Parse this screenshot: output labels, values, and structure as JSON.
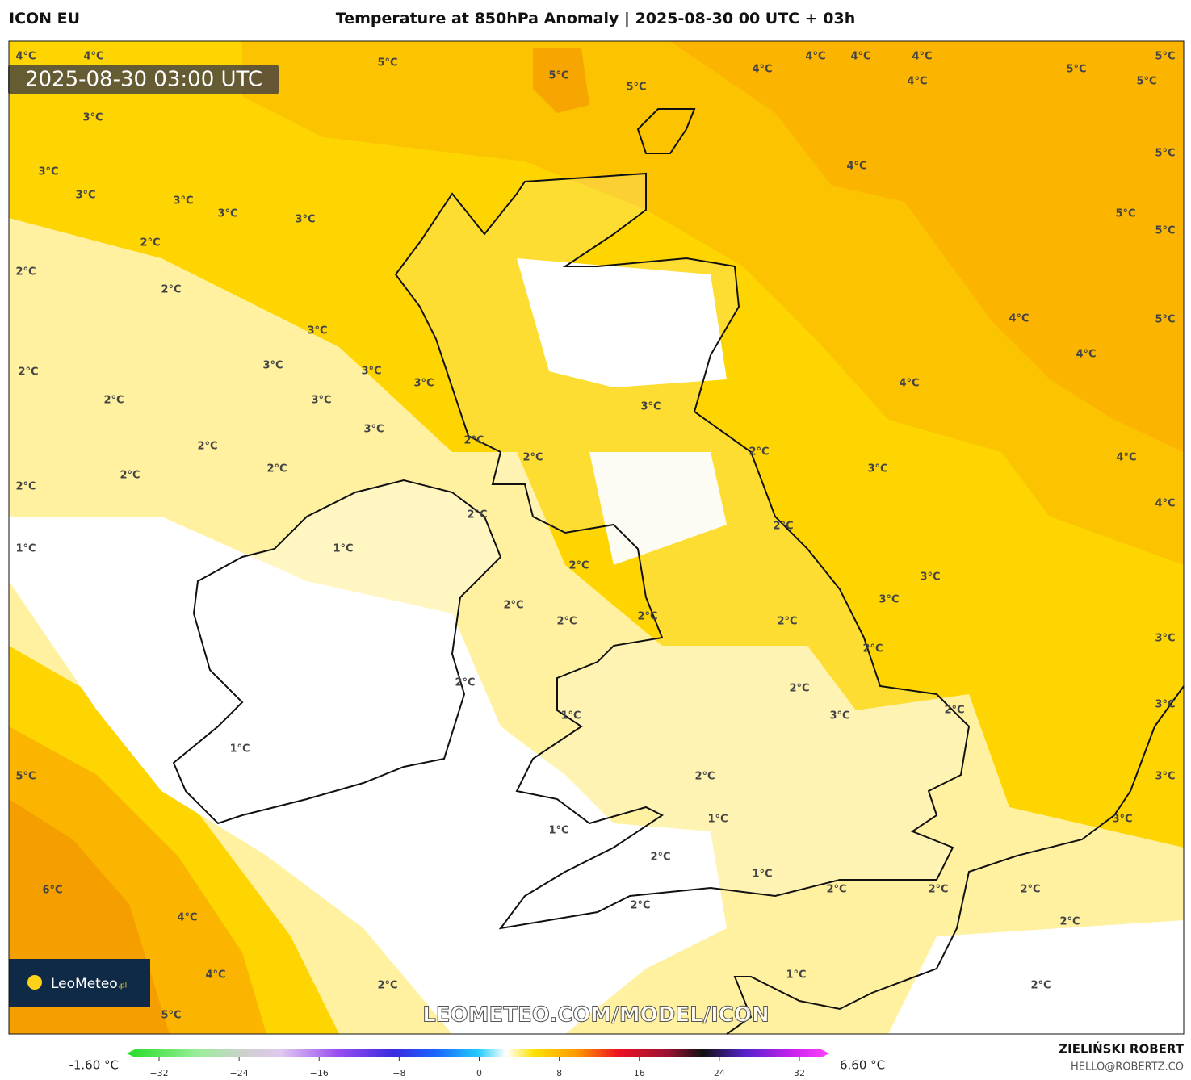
{
  "header": {
    "model": "ICON EU",
    "title": "Temperature at 850hPa Anomaly | 2025-08-30 00 UTC + 03h"
  },
  "map": {
    "timestamp": "2025-08-30 03:00 UTC",
    "logo": "LeoMeteo",
    "logo_suffix": ".pl",
    "watermark": "LEOMETEO.COM/MODEL/ICON",
    "contour_labels": [
      "4°C",
      "4°C",
      "5°C",
      "5°C",
      "5°C",
      "4°C",
      "4°C",
      "4°C",
      "4°C",
      "4°C",
      "5°C",
      "5°C",
      "5°C",
      "5°C",
      "4°C",
      "5°C",
      "5°C",
      "3°C",
      "3°C",
      "3°C",
      "3°C",
      "3°C",
      "3°C",
      "2°C",
      "2°C",
      "2°C",
      "3°C",
      "2°C",
      "3°C",
      "3°C",
      "3°C",
      "2°C",
      "3°C",
      "3°C",
      "2°C",
      "2°C",
      "2°C",
      "2°C",
      "4°C",
      "5°C",
      "4°C",
      "4°C",
      "3°C",
      "2°C",
      "2°C",
      "2°C",
      "3°C",
      "4°C",
      "4°C",
      "1°C",
      "1°C",
      "2°C",
      "2°C",
      "2°C",
      "2°C",
      "2°C",
      "3°C",
      "3°C",
      "2°C",
      "2°C",
      "2°C",
      "3°C",
      "2°C",
      "2°C",
      "1°C",
      "3°C",
      "2°C",
      "3°C",
      "1°C",
      "5°C",
      "2°C",
      "3°C",
      "1°C",
      "1°C",
      "3°C",
      "2°C",
      "1°C",
      "2°C",
      "2°C",
      "2°C",
      "6°C",
      "2°C",
      "2°C",
      "4°C",
      "4°C",
      "1°C",
      "2°C",
      "2°C",
      "5°C"
    ]
  },
  "legend": {
    "min": "-1.60 °C",
    "max": "6.60 °C",
    "ticks": [
      "−32",
      "−24",
      "−16",
      "−8",
      "0",
      "8",
      "16",
      "24",
      "32"
    ]
  },
  "footer": {
    "author": "ZIELIŃSKI ROBERT",
    "email": "HELLO@ROBERTZ.CO"
  }
}
